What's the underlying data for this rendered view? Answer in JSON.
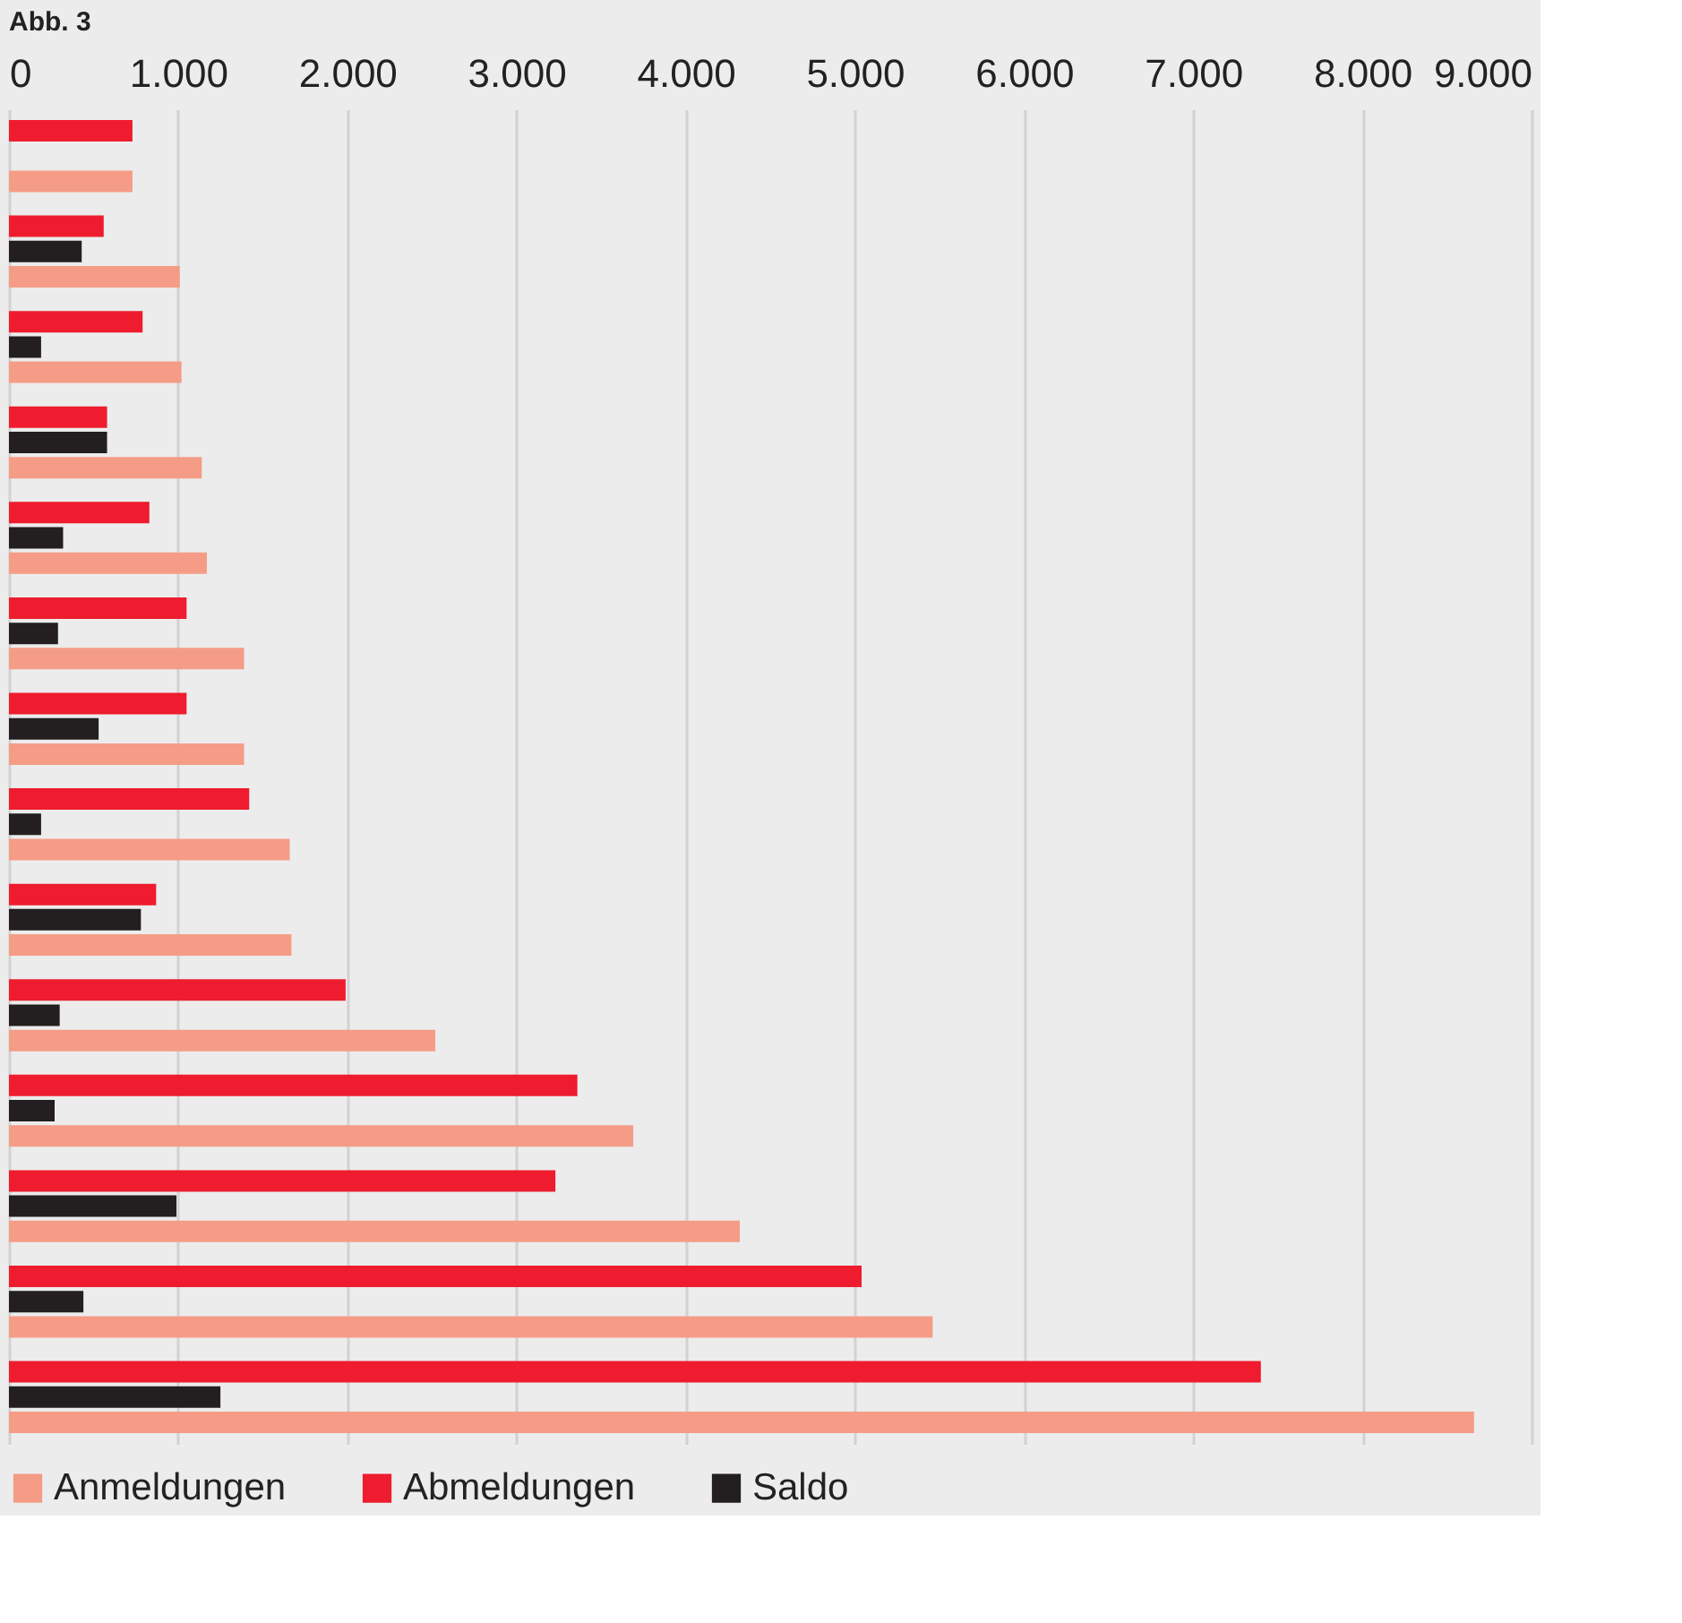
{
  "chart_data": {
    "type": "bar",
    "orientation": "horizontal",
    "title": "Abb. 3",
    "categories": [
      null,
      null,
      null,
      null,
      null,
      null,
      null,
      null,
      null,
      null,
      null,
      null,
      null,
      null
    ],
    "series": [
      {
        "name": "Anmeldungen",
        "color": "#f59c87",
        "values": [
          730,
          1010,
          1020,
          1140,
          1170,
          1390,
          1390,
          1660,
          1670,
          2520,
          3690,
          4320,
          5460,
          8660
        ]
      },
      {
        "name": "Abmeldungen",
        "color": "#ee1c2e",
        "values": [
          730,
          560,
          790,
          580,
          830,
          1050,
          1050,
          1420,
          870,
          1990,
          3360,
          3230,
          5040,
          7400
        ]
      },
      {
        "name": "Saldo",
        "color": "#231f20",
        "values": [
          0,
          430,
          190,
          580,
          320,
          290,
          530,
          190,
          780,
          300,
          270,
          990,
          440,
          1250
        ]
      }
    ],
    "xlim": [
      0,
      9000
    ],
    "xticks": [
      0,
      {
        "value": 1000,
        "label": "1.000"
      },
      {
        "value": 2000,
        "label": "2.000"
      },
      {
        "value": 3000,
        "label": "3.000"
      },
      {
        "value": 4000,
        "label": "4.000"
      },
      {
        "value": 5000,
        "label": "5.000"
      },
      {
        "value": 6000,
        "label": "6.000"
      },
      {
        "value": 7000,
        "label": "7.000"
      },
      {
        "value": 8000,
        "label": "8.000"
      },
      {
        "value": 9000,
        "label": "9.000"
      }
    ],
    "grid": "x",
    "legend": "bottom",
    "tick_labels": "x"
  }
}
